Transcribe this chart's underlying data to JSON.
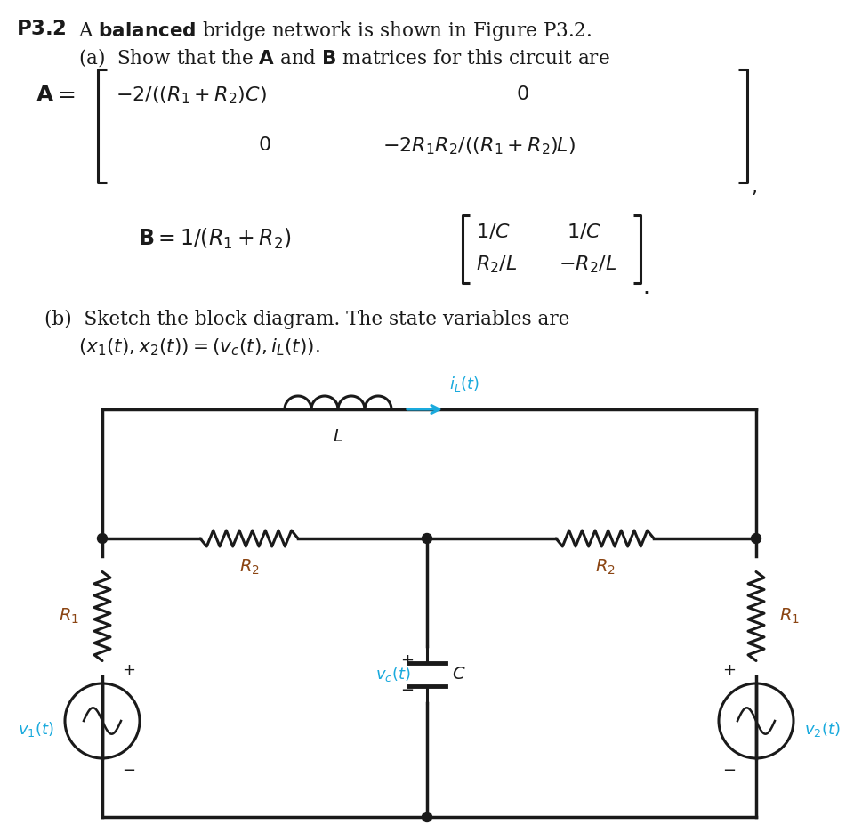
{
  "bg_color": "#ffffff",
  "text_color": "#1a1a1a",
  "circuit_color": "#1a1a1a",
  "cyan_color": "#1aaadd",
  "component_color": "#8B4513",
  "figw": 9.6,
  "figh": 9.36,
  "dpi": 100
}
